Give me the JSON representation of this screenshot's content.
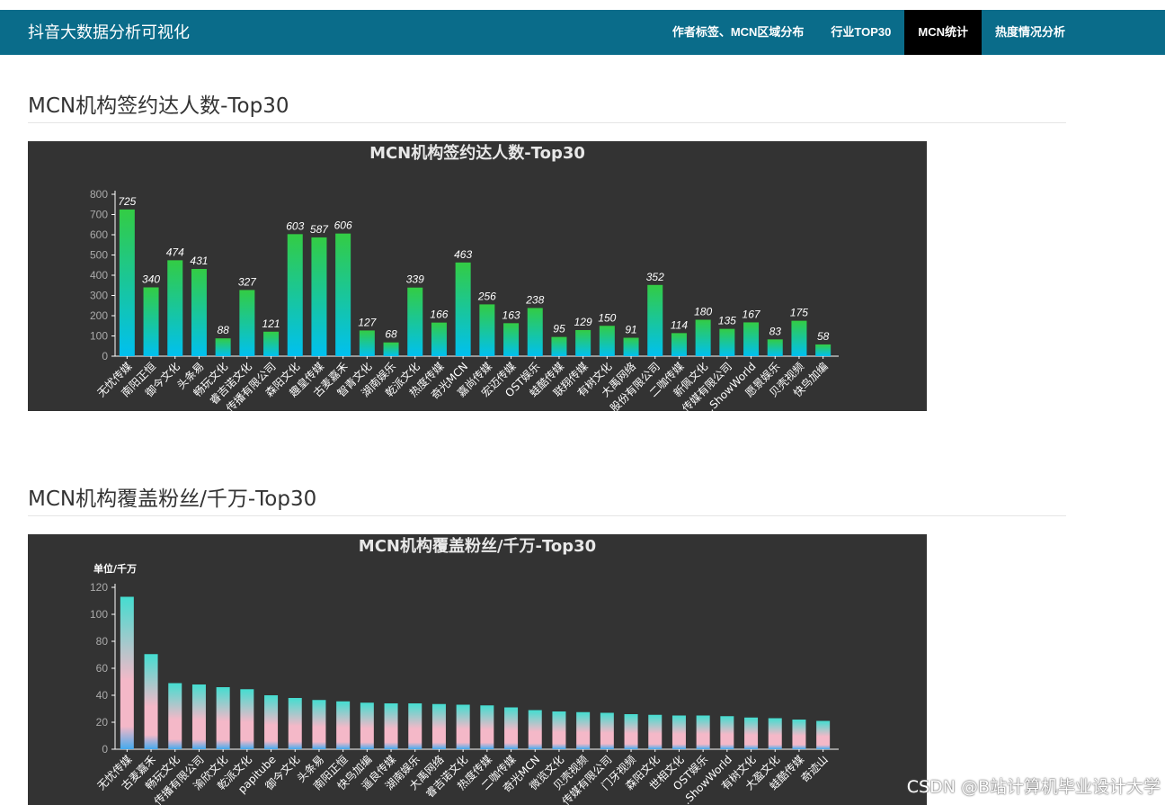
{
  "app": {
    "title": "抖音大数据分析可视化"
  },
  "nav": {
    "items": [
      {
        "label": "作者标签、MCN区域分布",
        "active": false
      },
      {
        "label": "行业TOP30",
        "active": false
      },
      {
        "label": "MCN统计",
        "active": true
      },
      {
        "label": "热度情况分析",
        "active": false
      }
    ]
  },
  "sections": [
    {
      "heading": "MCN机构签约达人数-Top30"
    },
    {
      "heading": "MCN机构覆盖粉丝/千万-Top30"
    }
  ],
  "watermark": "CSDN @B站计算机毕业设计大学",
  "colors": {
    "navbar": "#0a6c8a",
    "chart_bg": "#333333",
    "bar1_top": "#33cc44",
    "bar1_bottom": "#00c0f0",
    "bar2_top": "#44ddd0",
    "bar2_mid": "#f4b8c8",
    "bar2_bottom": "#44aaee"
  },
  "chart_data": [
    {
      "type": "bar",
      "title": "MCN机构签约达人数-Top30",
      "ylabel": "",
      "ylim": [
        0,
        800
      ],
      "yticks": [
        0,
        100,
        200,
        300,
        400,
        500,
        600,
        700,
        800
      ],
      "grid": false,
      "data_labels": true,
      "categories": [
        "无忧传媒",
        "南阳正恒",
        "御今文化",
        "头条易",
        "畅玩文化",
        "睿吉诺文化",
        "…传播有限公司",
        "森阳文化",
        "趣皇传媒",
        "古麦嘉禾",
        "智青文化",
        "湖南娱乐",
        "乾派文化",
        "热度传媒",
        "奇光MCN",
        "嘉尚传媒",
        "宏迈传媒",
        "OST娱乐",
        "蛙酷传媒",
        "联翔传媒",
        "有树文化",
        "大禹网络",
        "…股份有限公司",
        "二咖传媒",
        "新佩文化",
        "…传媒有限公司",
        "…ShowWorld",
        "愿景娱乐",
        "贝壳视频",
        "快鸟加编"
      ],
      "values": [
        725,
        340,
        474,
        431,
        88,
        327,
        121,
        603,
        587,
        606,
        127,
        68,
        339,
        166,
        463,
        256,
        163,
        238,
        95,
        129,
        150,
        91,
        352,
        114,
        180,
        135,
        167,
        83,
        175,
        58
      ]
    },
    {
      "type": "bar",
      "title": "MCN机构覆盖粉丝/千万-Top30",
      "unit_label": "单位/千万",
      "ylim": [
        0,
        120
      ],
      "yticks": [
        0,
        20,
        40,
        60,
        80,
        100,
        120
      ],
      "grid": false,
      "data_labels": false,
      "categories": [
        "无忧传媒",
        "古麦嘉禾",
        "畅玩文化",
        "…传播有限公司",
        "渝欣文化",
        "乾派文化",
        "papitube",
        "御今文化",
        "头条易",
        "南阳正恒",
        "快鸟加编",
        "遥良传媒",
        "湖南娱乐",
        "大禹网络",
        "睿吉诺文化",
        "热度传媒",
        "二咖传媒",
        "奇光MCN",
        "微览文化",
        "贝壳视频",
        "…传媒有限公司",
        "门牙视频",
        "森阳文化",
        "世相文化",
        "OST娱乐",
        "…ShowWorld",
        "有树文化",
        "大盈文化",
        "蛙酷传媒",
        "奇迹山"
      ],
      "values": [
        113,
        70.5,
        49,
        48,
        46,
        44.5,
        40,
        38,
        36.5,
        35.5,
        34.5,
        34,
        34,
        33.5,
        33,
        32.5,
        31,
        29,
        28,
        27.5,
        27,
        26,
        25.5,
        25,
        25,
        24.5,
        23.5,
        23,
        22,
        21
      ]
    }
  ]
}
